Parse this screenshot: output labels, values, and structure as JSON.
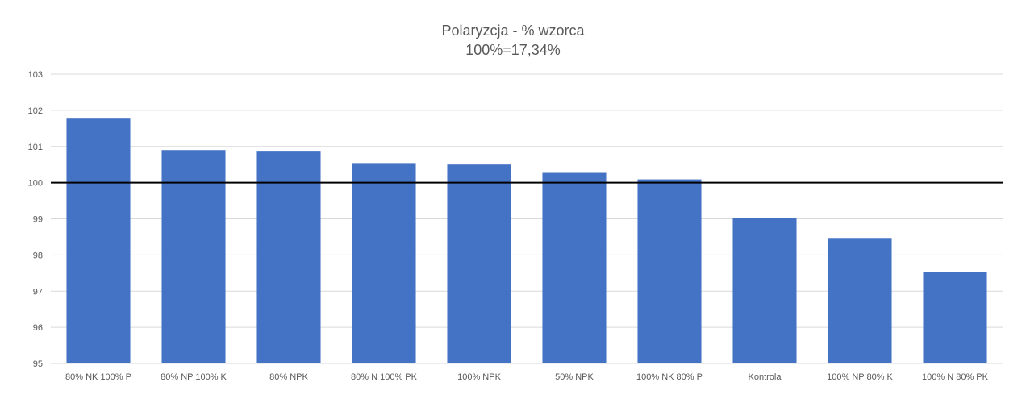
{
  "chart_data": {
    "type": "bar",
    "title": "Polaryzcja - % wzorca",
    "subtitle": "100%=17,34%",
    "categories": [
      "80% NK 100% P",
      "80% NP 100% K",
      "80% NPK",
      "80% N 100% PK",
      "100% NPK",
      "50% NPK",
      "100% NK 80% P",
      "Kontrola",
      "100% NP 80% K",
      "100% N 80% PK"
    ],
    "values": [
      101.77,
      100.9,
      100.88,
      100.54,
      100.5,
      100.27,
      100.09,
      99.03,
      98.47,
      97.54
    ],
    "ylim": [
      95,
      103
    ],
    "yticks": [
      95,
      96,
      97,
      98,
      99,
      100,
      101,
      102,
      103
    ],
    "reference_line": 100,
    "grid": true,
    "bar_color": "#4472C4",
    "reference_line_color": "#000000",
    "gridline_color": "#D9D9D9"
  }
}
